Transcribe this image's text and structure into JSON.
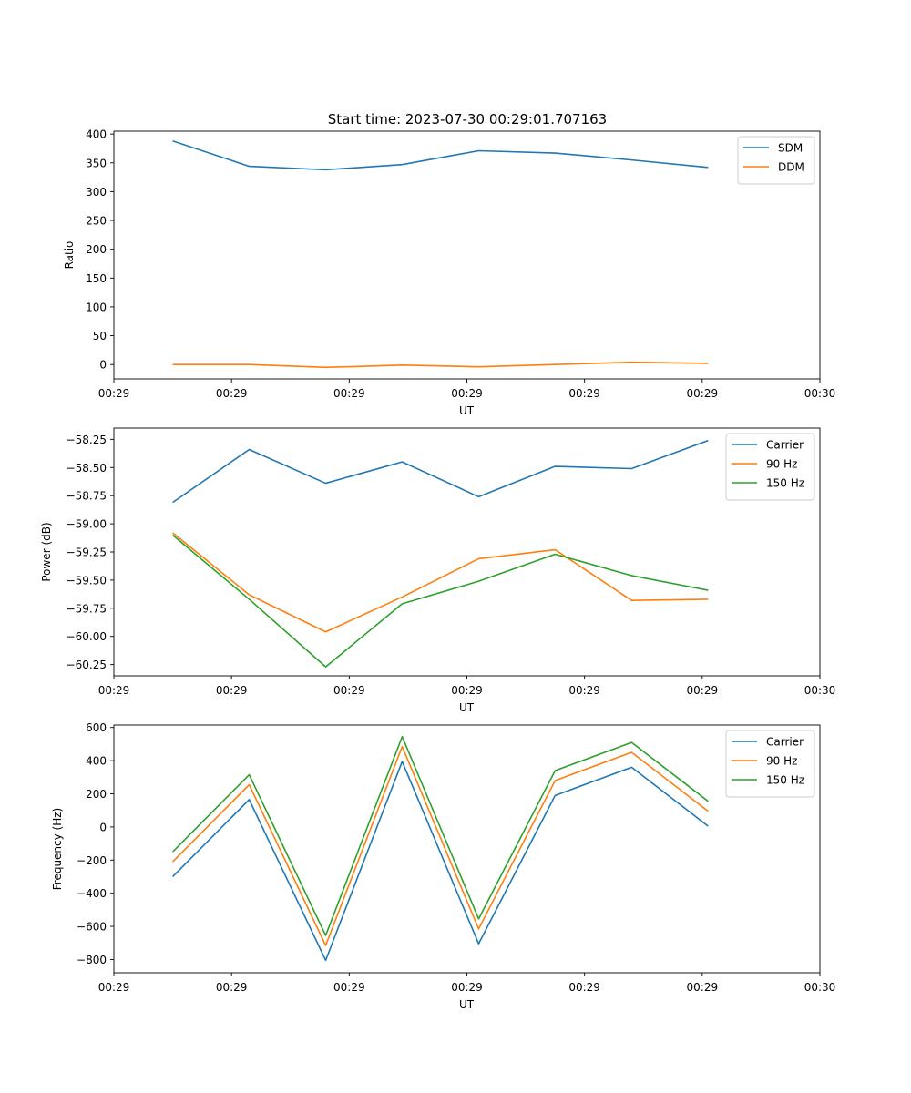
{
  "figure": {
    "title": "Start time: 2023-07-30 00:29:01.707163"
  },
  "colors": {
    "c0": "#1f77b4",
    "c1": "#ff7f0e",
    "c2": "#2ca02c"
  },
  "chart_data": [
    {
      "type": "line",
      "title": "Start time: 2023-07-30 00:29:01.707163",
      "xlabel": "UT",
      "ylabel": "Ratio",
      "x": [
        0.5,
        1.15,
        1.8,
        2.45,
        3.1,
        3.75,
        4.4,
        5.05
      ],
      "xlim": [
        0,
        6
      ],
      "xticks": [
        0,
        1,
        2,
        3,
        4,
        5,
        6
      ],
      "xtick_labels": [
        "00:29",
        "00:29",
        "00:29",
        "00:29",
        "00:29",
        "00:29",
        "00:30"
      ],
      "ylim": [
        -25,
        405
      ],
      "yticks": [
        0,
        50,
        100,
        150,
        200,
        250,
        300,
        350,
        400
      ],
      "ytick_labels": [
        "0",
        "50",
        "100",
        "150",
        "200",
        "250",
        "300",
        "350",
        "400"
      ],
      "legend": "top-right",
      "series": [
        {
          "name": "SDM",
          "color": "#1f77b4",
          "values": [
            388,
            344,
            338,
            347,
            371,
            367,
            355,
            342
          ]
        },
        {
          "name": "DDM",
          "color": "#ff7f0e",
          "values": [
            0,
            0,
            -5,
            -1,
            -4,
            0,
            4,
            2
          ]
        }
      ]
    },
    {
      "type": "line",
      "xlabel": "UT",
      "ylabel": "Power (dB)",
      "x": [
        0.5,
        1.15,
        1.8,
        2.45,
        3.1,
        3.75,
        4.4,
        5.05
      ],
      "xlim": [
        0,
        6
      ],
      "xticks": [
        0,
        1,
        2,
        3,
        4,
        5,
        6
      ],
      "xtick_labels": [
        "00:29",
        "00:29",
        "00:29",
        "00:29",
        "00:29",
        "00:29",
        "00:30"
      ],
      "ylim": [
        -60.35,
        -58.15
      ],
      "yticks": [
        -60.25,
        -60.0,
        -59.75,
        -59.5,
        -59.25,
        -59.0,
        -58.75,
        -58.5,
        -58.25
      ],
      "ytick_labels": [
        "−60.25",
        "−60.00",
        "−59.75",
        "−59.50",
        "−59.25",
        "−59.00",
        "−58.75",
        "−58.50",
        "−58.25"
      ],
      "legend": "top-right",
      "series": [
        {
          "name": "Carrier",
          "color": "#1f77b4",
          "values": [
            -58.81,
            -58.34,
            -58.64,
            -58.45,
            -58.76,
            -58.49,
            -58.51,
            -58.26
          ]
        },
        {
          "name": "90 Hz",
          "color": "#ff7f0e",
          "values": [
            -59.08,
            -59.63,
            -59.96,
            -59.65,
            -59.31,
            -59.23,
            -59.68,
            -59.67
          ]
        },
        {
          "name": "150 Hz",
          "color": "#2ca02c",
          "values": [
            -59.1,
            -59.67,
            -60.27,
            -59.71,
            -59.51,
            -59.27,
            -59.46,
            -59.59
          ]
        }
      ]
    },
    {
      "type": "line",
      "xlabel": "UT",
      "ylabel": "Frequency (Hz)",
      "x": [
        0.5,
        1.15,
        1.8,
        2.45,
        3.1,
        3.75,
        4.4,
        5.05
      ],
      "xlim": [
        0,
        6
      ],
      "xticks": [
        0,
        1,
        2,
        3,
        4,
        5,
        6
      ],
      "xtick_labels": [
        "00:29",
        "00:29",
        "00:29",
        "00:29",
        "00:29",
        "00:29",
        "00:30"
      ],
      "ylim": [
        -880,
        615
      ],
      "yticks": [
        -800,
        -600,
        -400,
        -200,
        0,
        200,
        400,
        600
      ],
      "ytick_labels": [
        "−800",
        "−600",
        "−400",
        "−200",
        "0",
        "200",
        "400",
        "600"
      ],
      "legend": "top-right",
      "series": [
        {
          "name": "Carrier",
          "color": "#1f77b4",
          "values": [
            -300,
            165,
            -805,
            395,
            -705,
            190,
            360,
            5
          ]
        },
        {
          "name": "90 Hz",
          "color": "#ff7f0e",
          "values": [
            -210,
            255,
            -715,
            485,
            -615,
            280,
            450,
            95
          ]
        },
        {
          "name": "150 Hz",
          "color": "#2ca02c",
          "values": [
            -150,
            315,
            -655,
            545,
            -555,
            340,
            510,
            155
          ]
        }
      ]
    }
  ]
}
